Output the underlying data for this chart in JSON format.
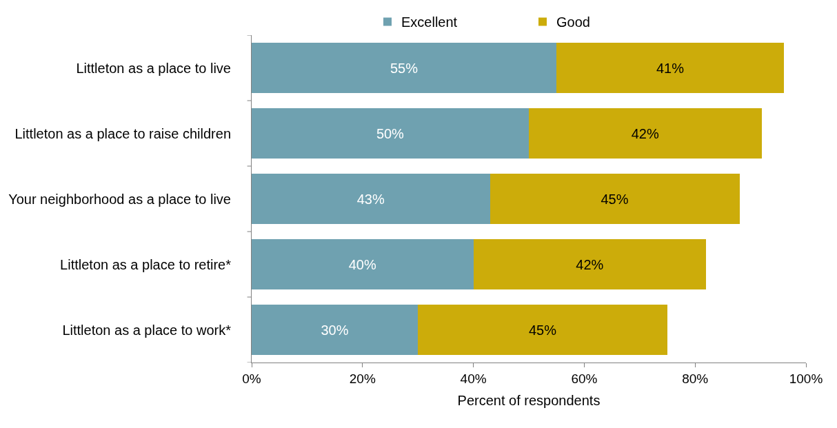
{
  "chart_data": {
    "type": "bar",
    "orientation": "horizontal",
    "stacked": true,
    "xlabel": "Percent of respondents",
    "categories": [
      "Littleton as a place to live",
      "Littleton as a place to raise children",
      "Your neighborhood as a place to live",
      "Littleton as a place to retire*",
      "Littleton as a place to work*"
    ],
    "series": [
      {
        "name": "Excellent",
        "color": "#6fa1b0",
        "values": [
          55,
          50,
          43,
          40,
          30
        ],
        "value_labels": [
          "55%",
          "50%",
          "43%",
          "40%",
          "30%"
        ]
      },
      {
        "name": "Good",
        "color": "#ccac0a",
        "values": [
          41,
          42,
          45,
          42,
          45
        ],
        "value_labels": [
          "41%",
          "42%",
          "45%",
          "42%",
          "45%"
        ]
      }
    ],
    "xlim": [
      0,
      100
    ],
    "xticks": [
      {
        "value": 0,
        "label": "0%"
      },
      {
        "value": 20,
        "label": "20%"
      },
      {
        "value": 40,
        "label": "40%"
      },
      {
        "value": 60,
        "label": "60%"
      },
      {
        "value": 80,
        "label": "80%"
      },
      {
        "value": 100,
        "label": "100%"
      }
    ],
    "legend": "top"
  }
}
